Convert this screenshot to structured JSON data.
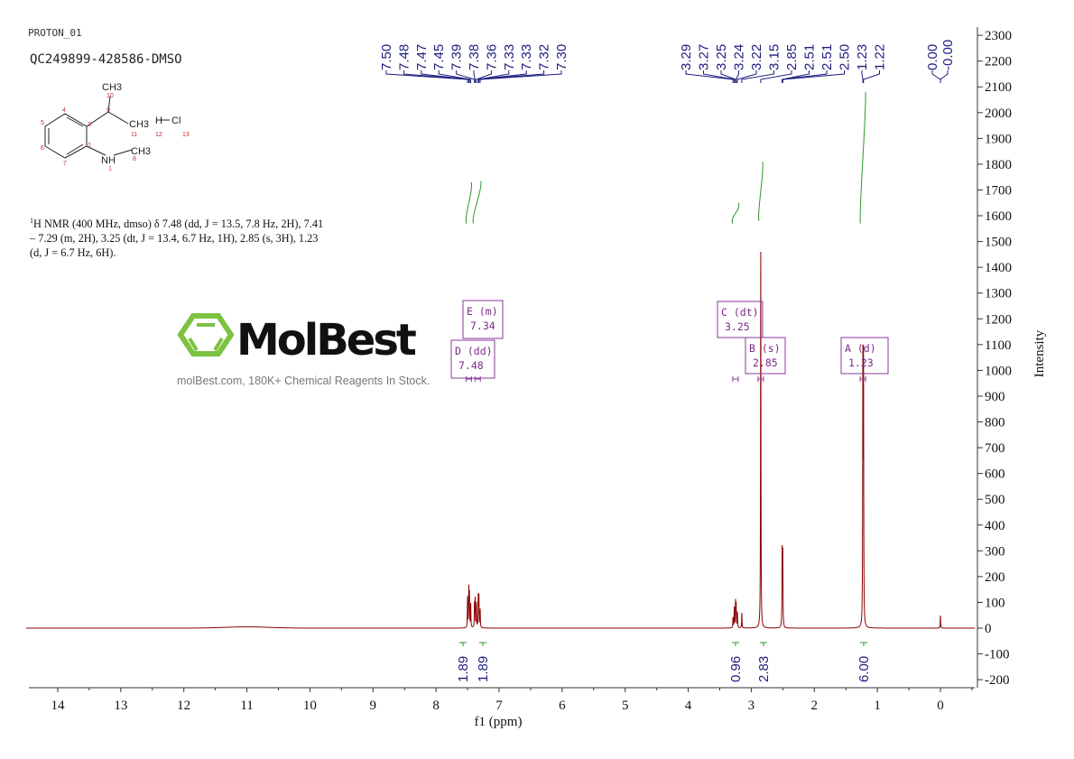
{
  "header": {
    "experiment": "PROTON_01",
    "sample": "QC249899-428586-DMSO"
  },
  "structure": {
    "groups": [
      "CH3",
      "CH3",
      "NH",
      "CH3",
      "H",
      "Cl"
    ],
    "atom_numbers": [
      "1",
      "2",
      "3",
      "4",
      "5",
      "6",
      "7",
      "8",
      "9",
      "10",
      "11",
      "12",
      "13"
    ]
  },
  "nmr_description": {
    "sup": "1",
    "text": "H NMR (400 MHz, dmso) δ 7.48 (dd, J = 13.5, 7.8 Hz, 2H), 7.41 – 7.29 (m, 2H), 3.25 (dt, J = 13.4, 6.7 Hz, 1H), 2.85 (s, 3H), 1.23 (d, J = 6.7 Hz, 6H)."
  },
  "watermark": {
    "brand": "MolBest",
    "tagline": "molBest.com, 180K+ Chemical Reagents In Stock."
  },
  "colors": {
    "spectrum": "#8b0000",
    "peak_label": "#1d1d80",
    "integral": "#2a9a2a",
    "annotation_box": "#8a3a9a",
    "logo_green": "#7dc242"
  },
  "chart_data": {
    "type": "line",
    "title": "",
    "xlabel": "f1 (ppm)",
    "ylabel": "Intensity",
    "xlim": [
      14.5,
      -0.55
    ],
    "ylim": [
      -200,
      2300
    ],
    "x_ticks": [
      14,
      13,
      12,
      11,
      10,
      9,
      8,
      7,
      6,
      5,
      4,
      3,
      2,
      1,
      0
    ],
    "y_ticks": [
      2300,
      2200,
      2100,
      2000,
      1900,
      1800,
      1700,
      1600,
      1500,
      1400,
      1300,
      1200,
      1100,
      1000,
      900,
      800,
      700,
      600,
      500,
      400,
      300,
      200,
      100,
      0,
      -100,
      -200
    ],
    "peaks": [
      [
        7.5,
        120
      ],
      [
        7.48,
        150
      ],
      [
        7.47,
        130
      ],
      [
        7.45,
        90
      ],
      [
        7.39,
        90
      ],
      [
        7.38,
        110
      ],
      [
        7.36,
        95
      ],
      [
        7.33,
        120
      ],
      [
        7.32,
        120
      ],
      [
        7.3,
        70
      ],
      [
        3.29,
        40
      ],
      [
        3.27,
        80
      ],
      [
        3.25,
        100
      ],
      [
        3.24,
        90
      ],
      [
        3.22,
        60
      ],
      [
        3.15,
        60
      ],
      [
        2.85,
        1490
      ],
      [
        2.51,
        300
      ],
      [
        2.5,
        280
      ],
      [
        1.23,
        1000
      ],
      [
        1.22,
        1000
      ],
      [
        0.0,
        25
      ],
      [
        -0.0,
        25
      ]
    ],
    "peak_labels_group1": [
      "7.50",
      "7.48",
      "7.47",
      "7.45",
      "7.39",
      "7.38",
      "7.36",
      "7.33",
      "7.33",
      "7.32",
      "7.30"
    ],
    "peak_labels_group2": [
      "3.29",
      "3.27",
      "3.25",
      "3.24",
      "3.22",
      "3.15",
      "2.85",
      "2.51",
      "2.51",
      "2.50",
      "1.23",
      "1.22"
    ],
    "peak_labels_group3": [
      "0.00",
      "-0.00"
    ],
    "integrals": [
      {
        "label": "1.89",
        "from": 7.52,
        "to": 7.44,
        "start": 1570,
        "end": 1730
      },
      {
        "label": "1.89",
        "from": 7.41,
        "to": 7.29,
        "start": 1570,
        "end": 1735
      },
      {
        "label": "0.96",
        "from": 3.3,
        "to": 3.2,
        "start": 1570,
        "end": 1650
      },
      {
        "label": "2.83",
        "from": 2.88,
        "to": 2.82,
        "start": 1580,
        "end": 1810
      },
      {
        "label": "6.00",
        "from": 1.27,
        "to": 1.19,
        "start": 1570,
        "end": 2080
      }
    ],
    "multiplets": [
      {
        "name": "E (m)",
        "value": "7.34",
        "ppm": 7.34
      },
      {
        "name": "D (dd)",
        "value": "7.48",
        "ppm": 7.48
      },
      {
        "name": "C (dt)",
        "value": "3.25",
        "ppm": 3.25
      },
      {
        "name": "B (s)",
        "value": "2.85",
        "ppm": 2.85
      },
      {
        "name": "A (d)",
        "value": "1.23",
        "ppm": 1.23
      }
    ]
  }
}
